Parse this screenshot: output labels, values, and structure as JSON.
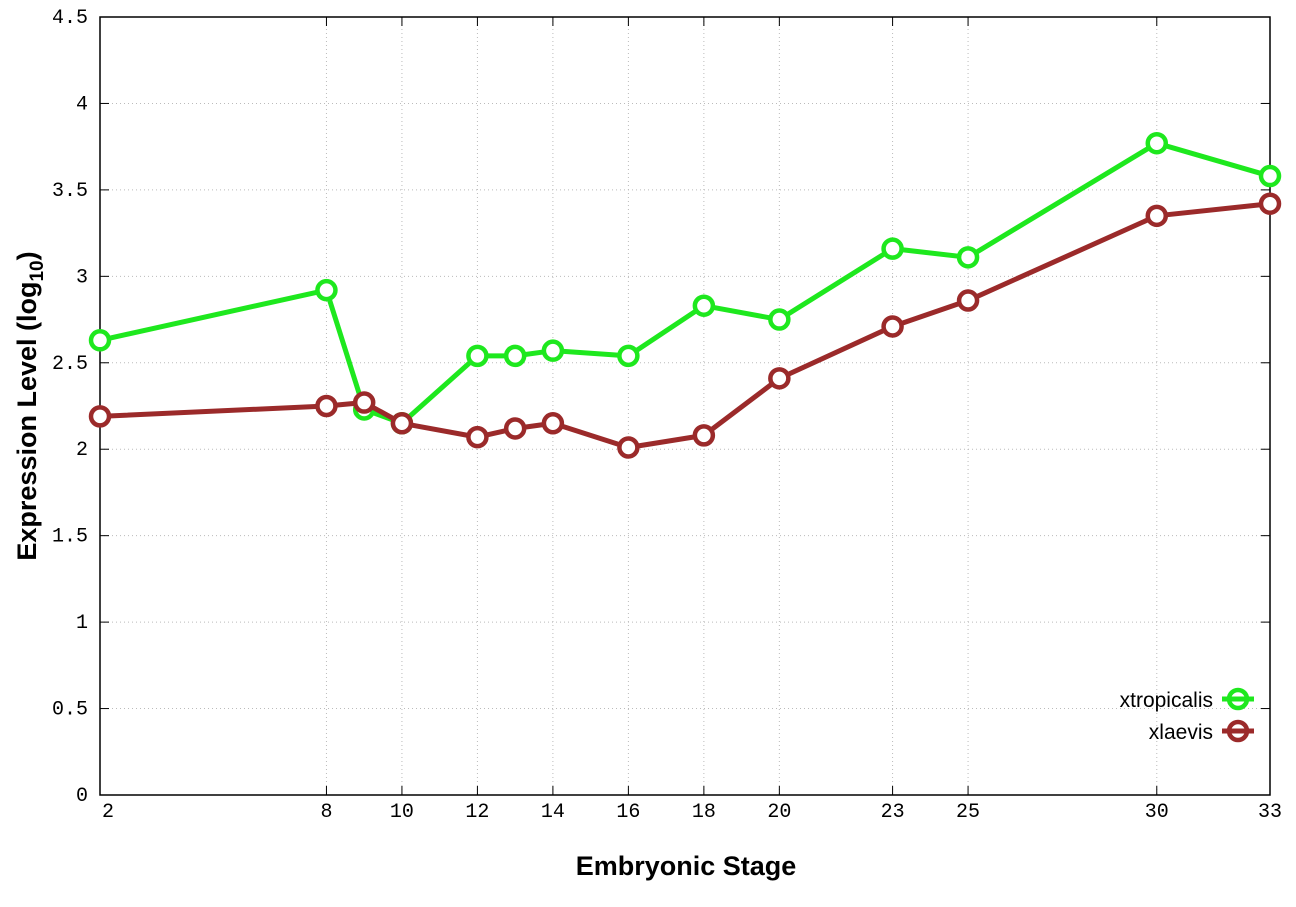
{
  "chart_data": {
    "type": "line",
    "title": "",
    "xlabel": "Embryonic Stage",
    "ylabel_main": "Expression Level (log",
    "ylabel_sub": "10",
    "ylabel_close": ")",
    "ylim": [
      0,
      4.5
    ],
    "xlim": [
      2,
      33
    ],
    "grid": true,
    "legend_position": "bottom-right",
    "x": [
      2,
      8,
      9,
      10,
      12,
      13,
      14,
      16,
      18,
      20,
      23,
      25,
      30,
      33
    ],
    "xticks": [
      2,
      8,
      10,
      12,
      14,
      16,
      18,
      20,
      23,
      25,
      30,
      33
    ],
    "xtick_labels": [
      "2",
      "8",
      "10",
      "12",
      "14",
      "16",
      "18",
      "20",
      "23",
      "25",
      "30",
      "33"
    ],
    "yticks": [
      0,
      0.5,
      1,
      1.5,
      2,
      2.5,
      3,
      3.5,
      4,
      4.5
    ],
    "ytick_labels": [
      "0",
      "0.5",
      "1",
      "1.5",
      "2",
      "2.5",
      "3",
      "3.5",
      "4",
      "4.5"
    ],
    "series": [
      {
        "name": "xtropicalis",
        "color": "#1ee81e",
        "values": [
          2.63,
          2.92,
          2.23,
          2.15,
          2.54,
          2.54,
          2.57,
          2.54,
          2.83,
          2.75,
          3.16,
          3.11,
          3.77,
          3.58
        ]
      },
      {
        "name": "xlaevis",
        "color": "#9b2a2a",
        "values": [
          2.19,
          2.25,
          2.27,
          2.15,
          2.07,
          2.12,
          2.15,
          2.01,
          2.08,
          2.41,
          2.71,
          2.86,
          3.35,
          3.42
        ]
      }
    ]
  }
}
